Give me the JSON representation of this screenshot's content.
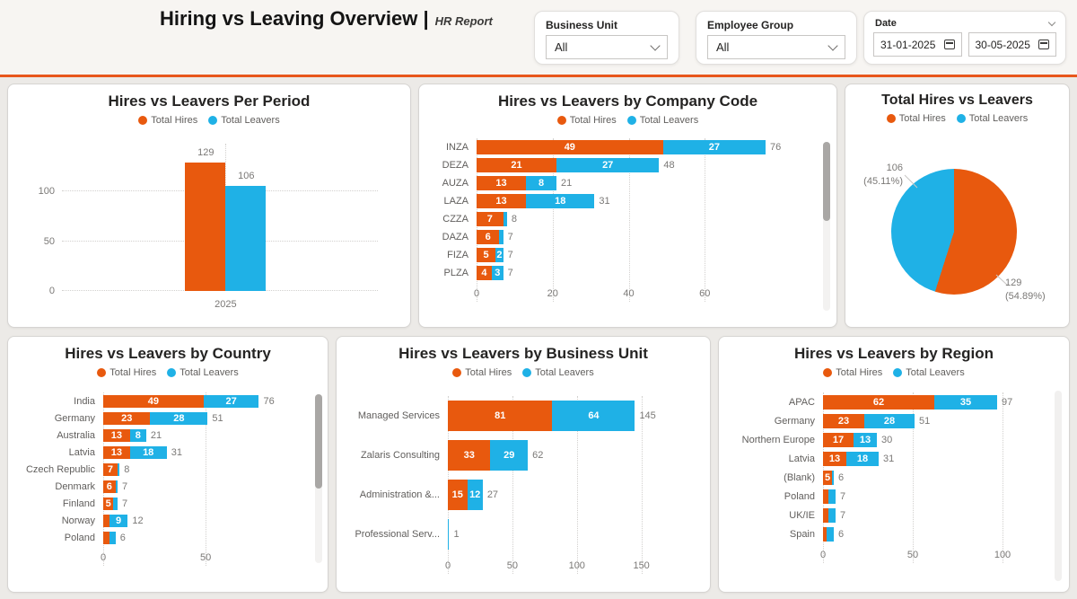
{
  "header": {
    "title": "Hiring vs Leaving Overview |",
    "subtitle": "HR Report",
    "filters": {
      "business_unit": {
        "label": "Business Unit",
        "value": "All"
      },
      "employee_group": {
        "label": "Employee Group",
        "value": "All"
      },
      "date": {
        "label": "Date",
        "start_value": "31-01-2025",
        "end_value": "30-05-2025"
      }
    }
  },
  "colors": {
    "hires": "#E8590E",
    "leavers": "#1FB1E6",
    "accent_line": "#E8571C",
    "page_bg": "#ECEAE7",
    "card_bg": "#FFFFFF"
  },
  "chart_data": [
    {
      "id": "hires_vs_leavers_per_period",
      "type": "column",
      "title": "Hires vs Leavers Per Period",
      "categories": [
        "2025"
      ],
      "series": [
        {
          "name": "Total Hires",
          "values": [
            129
          ],
          "labels": [
            "129"
          ]
        },
        {
          "name": "Total Leavers",
          "values": [
            106
          ],
          "labels": [
            "106"
          ]
        }
      ],
      "y_ticks": [
        0,
        50,
        100
      ],
      "ylim": [
        0,
        148
      ],
      "grid": "dotted",
      "legend_position": "top"
    },
    {
      "id": "hires_vs_leavers_by_company_code",
      "type": "stacked_bar_horizontal",
      "title": "Hires vs Leavers by Company Code",
      "categories": [
        "INZA",
        "DEZA",
        "AUZA",
        "LAZA",
        "CZZA",
        "DAZA",
        "FIZA",
        "PLZA"
      ],
      "series": [
        {
          "name": "Total Hires",
          "values": [
            49,
            21,
            13,
            13,
            7,
            6,
            5,
            4
          ],
          "labels": [
            "49",
            "21",
            "13",
            "13",
            "7",
            "6",
            "5",
            "4"
          ]
        },
        {
          "name": "Total Leavers",
          "values": [
            27,
            27,
            8,
            18,
            1,
            1,
            2,
            3
          ],
          "labels": [
            "27",
            "27",
            "8",
            "18",
            "",
            "",
            "2",
            "3"
          ]
        }
      ],
      "totals": [
        76,
        48,
        21,
        31,
        8,
        7,
        7,
        7
      ],
      "x_ticks": [
        0,
        20,
        40,
        60
      ],
      "xlim": [
        0,
        80
      ],
      "grid": "dotted",
      "legend_position": "top",
      "scrollbar": true
    },
    {
      "id": "total_hires_vs_leavers",
      "type": "pie",
      "title": "Total Hires vs Leavers",
      "slices": [
        {
          "name": "Total Hires",
          "value": 129,
          "pct": 54.89
        },
        {
          "name": "Total Leavers",
          "value": 106,
          "pct": 45.11
        }
      ],
      "callouts": {
        "leavers_line1": "106",
        "leavers_line2": "(45.11%)",
        "hires_line1": "129",
        "hires_line2": "(54.89%)"
      },
      "legend_position": "top"
    },
    {
      "id": "hires_vs_leavers_by_country",
      "type": "stacked_bar_horizontal",
      "title": "Hires vs Leavers by Country",
      "categories": [
        "India",
        "Germany",
        "Australia",
        "Latvia",
        "Czech Republic",
        "Denmark",
        "Finland",
        "Norway",
        "Poland"
      ],
      "series": [
        {
          "name": "Total Hires",
          "values": [
            49,
            23,
            13,
            13,
            7,
            6,
            5,
            3,
            3
          ],
          "labels": [
            "49",
            "23",
            "13",
            "13",
            "7",
            "6",
            "5",
            "",
            ""
          ]
        },
        {
          "name": "Total Leavers",
          "values": [
            27,
            28,
            8,
            18,
            1,
            1,
            2,
            9,
            3
          ],
          "labels": [
            "27",
            "28",
            "8",
            "18",
            "",
            "",
            "",
            "9",
            ""
          ]
        }
      ],
      "totals": [
        76,
        51,
        21,
        31,
        8,
        7,
        7,
        12,
        6
      ],
      "x_ticks": [
        0,
        50
      ],
      "xlim": [
        0,
        85
      ],
      "grid": "dotted",
      "legend_position": "top",
      "scrollbar": true
    },
    {
      "id": "hires_vs_leavers_by_business_unit",
      "type": "stacked_bar_horizontal",
      "title": "Hires vs Leavers by Business Unit",
      "categories": [
        "Managed Services",
        "Zalaris Consulting",
        "Administration &...",
        "Professional Serv..."
      ],
      "series": [
        {
          "name": "Total Hires",
          "values": [
            81,
            33,
            15,
            0
          ],
          "labels": [
            "81",
            "33",
            "15",
            ""
          ]
        },
        {
          "name": "Total Leavers",
          "values": [
            64,
            29,
            12,
            1
          ],
          "labels": [
            "64",
            "29",
            "12",
            ""
          ]
        }
      ],
      "totals": [
        145,
        62,
        27,
        1
      ],
      "x_ticks": [
        0,
        50,
        100,
        150
      ],
      "xlim": [
        0,
        160
      ],
      "grid": "dotted",
      "legend_position": "top"
    },
    {
      "id": "hires_vs_leavers_by_region",
      "type": "stacked_bar_horizontal",
      "title": "Hires vs Leavers by Region",
      "categories": [
        "APAC",
        "Germany",
        "Northern Europe",
        "Latvia",
        "(Blank)",
        "Poland",
        "UK/IE",
        "Spain"
      ],
      "series": [
        {
          "name": "Total Hires",
          "values": [
            62,
            23,
            17,
            13,
            5,
            3,
            3,
            2
          ],
          "labels": [
            "62",
            "23",
            "17",
            "13",
            "5",
            "",
            "",
            ""
          ]
        },
        {
          "name": "Total Leavers",
          "values": [
            35,
            28,
            13,
            18,
            1,
            4,
            4,
            4
          ],
          "labels": [
            "35",
            "28",
            "13",
            "18",
            "",
            "",
            "",
            ""
          ]
        }
      ],
      "totals": [
        97,
        51,
        30,
        31,
        6,
        7,
        7,
        6
      ],
      "x_ticks": [
        0,
        50,
        100
      ],
      "xlim": [
        0,
        105
      ],
      "grid": "dotted",
      "legend_position": "top",
      "scrollbar": true
    }
  ]
}
